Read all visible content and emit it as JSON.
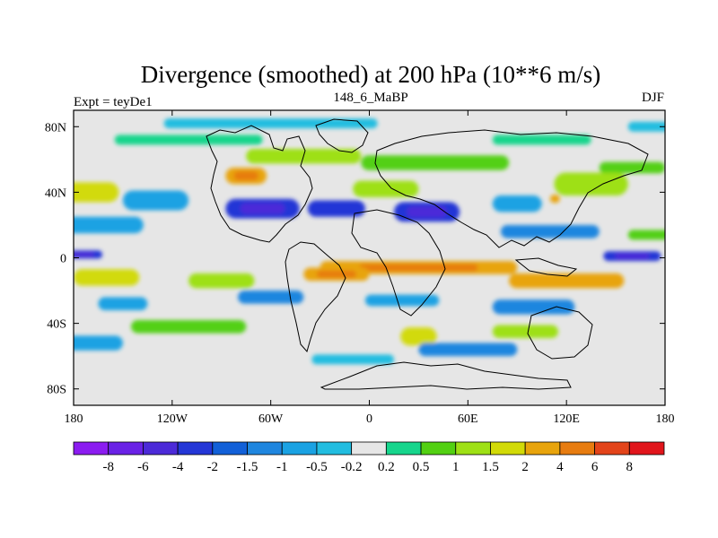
{
  "chart_data": {
    "type": "heatmap",
    "title": "Divergence (smoothed) at 200 hPa (10**6 m/s)",
    "subtitle_left": "Expt = teyDe1",
    "subtitle_center": "148_6_MaBP",
    "subtitle_right": "DJF",
    "x_range": [
      -180,
      180
    ],
    "y_range": [
      -90,
      90
    ],
    "x_ticks": [
      {
        "value": -180,
        "label": "180"
      },
      {
        "value": -120,
        "label": "120W"
      },
      {
        "value": -60,
        "label": "60W"
      },
      {
        "value": 0,
        "label": "0"
      },
      {
        "value": 60,
        "label": "60E"
      },
      {
        "value": 120,
        "label": "120E"
      },
      {
        "value": 180,
        "label": "180"
      }
    ],
    "y_ticks": [
      {
        "value": 80,
        "label": "80N"
      },
      {
        "value": 40,
        "label": "40N"
      },
      {
        "value": 0,
        "label": "0"
      },
      {
        "value": -40,
        "label": "40S"
      },
      {
        "value": -80,
        "label": "80S"
      }
    ],
    "colorbar": {
      "levels": [
        "-8",
        "-6",
        "-4",
        "-2",
        "-1.5",
        "-1",
        "-0.5",
        "-0.2",
        "0.2",
        "0.5",
        "1",
        "1.5",
        "2",
        "4",
        "6",
        "8"
      ],
      "colors": [
        "#8b1cf0",
        "#6a22e6",
        "#4c2ad8",
        "#2436d6",
        "#1260d8",
        "#1f86df",
        "#1aa2e3",
        "#22bde0",
        "#e6e6e6",
        "#16d58c",
        "#52d012",
        "#9ee015",
        "#d2da07",
        "#e8a40c",
        "#e77c10",
        "#e3441a",
        "#e1151b"
      ]
    },
    "bands": [
      {
        "lat": 82,
        "lat_width": 6,
        "lon": -60,
        "lon_width": 130,
        "value": -0.3
      },
      {
        "lat": 80,
        "lat_width": 6,
        "lon": 170,
        "lon_width": 25,
        "value": -0.4
      },
      {
        "lat": 72,
        "lat_width": 6,
        "lon": -110,
        "lon_width": 90,
        "value": 0.3
      },
      {
        "lat": 72,
        "lat_width": 6,
        "lon": 105,
        "lon_width": 60,
        "value": 0.3
      },
      {
        "lat": 62,
        "lat_width": 9,
        "lon": -40,
        "lon_width": 70,
        "value": 1.2
      },
      {
        "lat": 58,
        "lat_width": 9,
        "lon": 40,
        "lon_width": 90,
        "value": 0.9
      },
      {
        "lat": 55,
        "lat_width": 7,
        "lon": 160,
        "lon_width": 40,
        "value": 0.7
      },
      {
        "lat": 50,
        "lat_width": 10,
        "lon": -75,
        "lon_width": 25,
        "value": 2.5
      },
      {
        "lat": 40,
        "lat_width": 12,
        "lon": -175,
        "lon_width": 45,
        "value": 1.6
      },
      {
        "lat": 42,
        "lat_width": 10,
        "lon": 10,
        "lon_width": 40,
        "value": 1.0
      },
      {
        "lat": 45,
        "lat_width": 14,
        "lon": 135,
        "lon_width": 45,
        "value": 1.2
      },
      {
        "lat": 35,
        "lat_width": 12,
        "lon": -130,
        "lon_width": 40,
        "value": -0.7
      },
      {
        "lat": 30,
        "lat_width": 12,
        "lon": -65,
        "lon_width": 45,
        "value": -3.0
      },
      {
        "lat": 30,
        "lat_width": 10,
        "lon": -20,
        "lon_width": 35,
        "value": -2.5
      },
      {
        "lat": 28,
        "lat_width": 12,
        "lon": 35,
        "lon_width": 40,
        "value": -3.2
      },
      {
        "lat": 33,
        "lat_width": 10,
        "lon": 90,
        "lon_width": 30,
        "value": -0.8
      },
      {
        "lat": 36,
        "lat_width": 5,
        "lon": 113,
        "lon_width": 6,
        "value": 2.0
      },
      {
        "lat": 20,
        "lat_width": 10,
        "lon": -165,
        "lon_width": 55,
        "value": -1.0
      },
      {
        "lat": 16,
        "lat_width": 8,
        "lon": 110,
        "lon_width": 60,
        "value": -1.5
      },
      {
        "lat": 14,
        "lat_width": 6,
        "lon": 170,
        "lon_width": 25,
        "value": 0.8
      },
      {
        "lat": 2,
        "lat_width": 5,
        "lon": -175,
        "lon_width": 25,
        "value": -3.5
      },
      {
        "lat": 1,
        "lat_width": 6,
        "lon": 160,
        "lon_width": 35,
        "value": -3.0
      },
      {
        "lat": -6,
        "lat_width": 8,
        "lon": 30,
        "lon_width": 120,
        "value": 3.0
      },
      {
        "lat": -10,
        "lat_width": 8,
        "lon": -20,
        "lon_width": 40,
        "value": 3.5
      },
      {
        "lat": -14,
        "lat_width": 9,
        "lon": 120,
        "lon_width": 70,
        "value": 2.2
      },
      {
        "lat": -12,
        "lat_width": 10,
        "lon": -160,
        "lon_width": 40,
        "value": 1.8
      },
      {
        "lat": -14,
        "lat_width": 9,
        "lon": -90,
        "lon_width": 40,
        "value": 1.1
      },
      {
        "lat": -24,
        "lat_width": 8,
        "lon": -60,
        "lon_width": 40,
        "value": -1.2
      },
      {
        "lat": -26,
        "lat_width": 7,
        "lon": 20,
        "lon_width": 45,
        "value": -1.0
      },
      {
        "lat": -30,
        "lat_width": 9,
        "lon": 100,
        "lon_width": 50,
        "value": -1.4
      },
      {
        "lat": -28,
        "lat_width": 8,
        "lon": -150,
        "lon_width": 30,
        "value": -0.8
      },
      {
        "lat": -42,
        "lat_width": 8,
        "lon": -110,
        "lon_width": 70,
        "value": 0.8
      },
      {
        "lat": -48,
        "lat_width": 11,
        "lon": 30,
        "lon_width": 22,
        "value": 1.8
      },
      {
        "lat": -45,
        "lat_width": 8,
        "lon": 95,
        "lon_width": 40,
        "value": 1.2
      },
      {
        "lat": -52,
        "lat_width": 9,
        "lon": -170,
        "lon_width": 40,
        "value": -0.9
      },
      {
        "lat": -56,
        "lat_width": 8,
        "lon": 60,
        "lon_width": 60,
        "value": -1.1
      },
      {
        "lat": -62,
        "lat_width": 6,
        "lon": -10,
        "lon_width": 50,
        "value": -0.4
      }
    ]
  }
}
